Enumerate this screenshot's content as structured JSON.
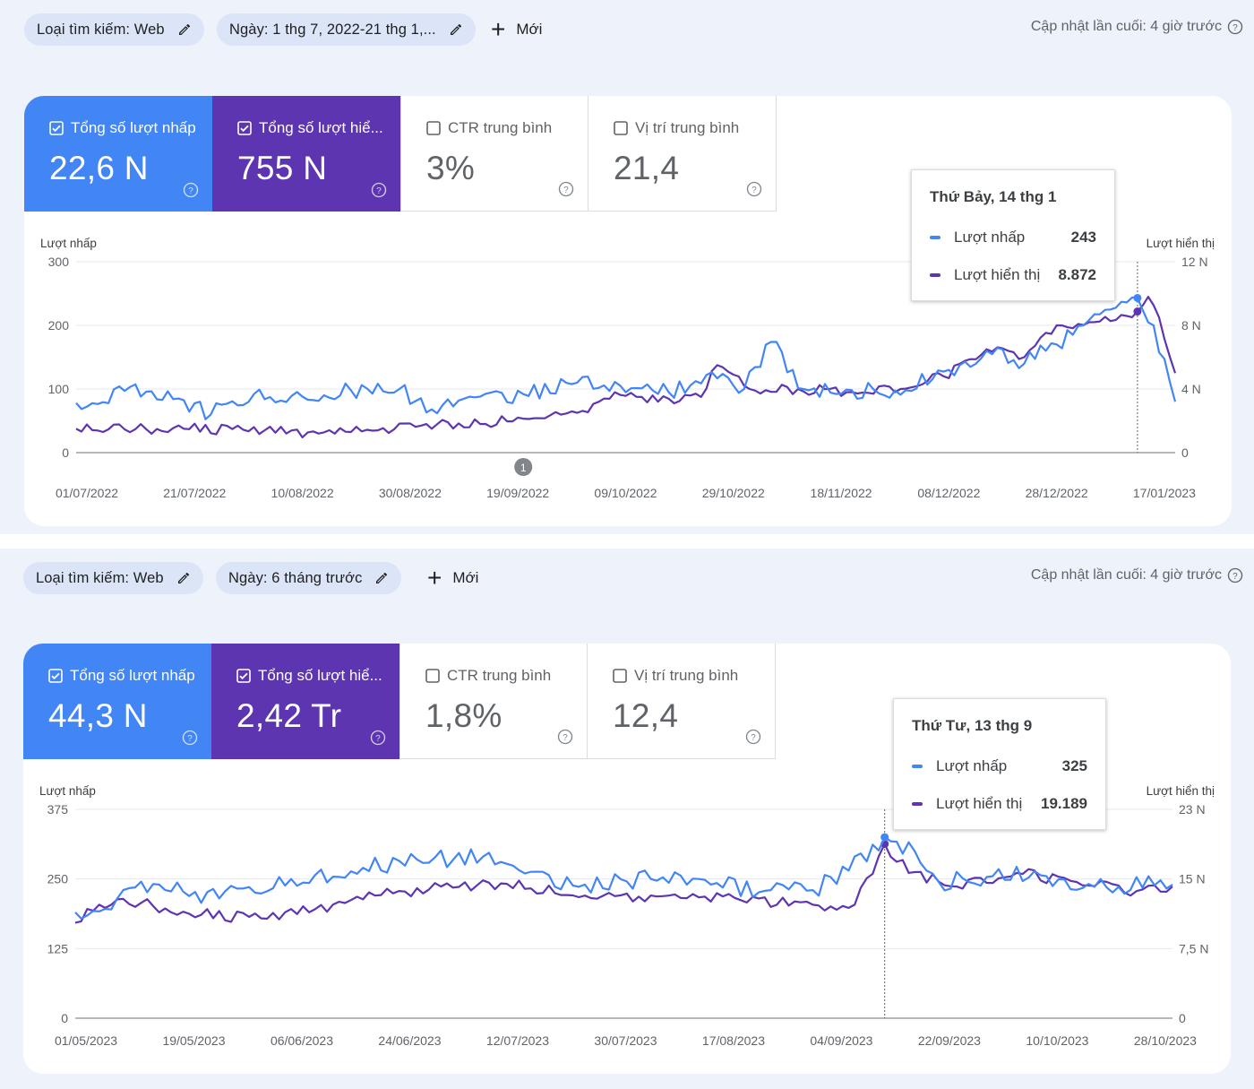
{
  "colors": {
    "clicks": "#4285f4",
    "impressions": "#5e35b1",
    "section_bg": "#eef2fb",
    "chip_bg": "#dbe5f7",
    "grid": "#e8eaed",
    "axis_text": "#5f6368"
  },
  "icons": {
    "edit": "pencil-icon",
    "add": "plus-icon",
    "help": "help-circle-icon",
    "checkbox": "checkbox-icon",
    "annotation": "annotation-marker-icon"
  },
  "panels": [
    {
      "filters": {
        "search_type": "Loại tìm kiếm: Web",
        "date": "Ngày: 1 thg 7, 2022-21 thg 1,..."
      },
      "new_label": "Mới",
      "updated": "Cập nhật lần cuối: 4 giờ trước",
      "metrics": [
        {
          "label": "Tổng số lượt nhấp",
          "value": "22,6 N",
          "checked": true
        },
        {
          "label": "Tổng số lượt hiể...",
          "value": "755 N",
          "checked": true
        },
        {
          "label": "CTR trung bình",
          "value": "3%",
          "checked": false
        },
        {
          "label": "Vị trí trung bình",
          "value": "21,4",
          "checked": false
        }
      ],
      "tooltip": {
        "date": "Thứ Bảy, 14 thg 1",
        "rows": [
          {
            "name": "Lượt nhấp",
            "value": "243"
          },
          {
            "name": "Lượt hiển thị",
            "value": "8.872"
          }
        ]
      },
      "chart_data": {
        "type": "line",
        "left_axis_label": "Lượt nhấp",
        "right_axis_label": "Lượt hiển thị",
        "left_ticks": [
          "300",
          "200",
          "100",
          "0"
        ],
        "right_ticks": [
          "12 N",
          "8 N",
          "4 N",
          "0"
        ],
        "ylim_left": [
          0,
          300
        ],
        "ylim_right": [
          0,
          12000
        ],
        "x_start": "01/07/2022",
        "x_end": "21/01/2023",
        "x_ticks": [
          "01/07/2022",
          "21/07/2022",
          "10/08/2022",
          "30/08/2022",
          "19/09/2022",
          "09/10/2022",
          "29/10/2022",
          "18/11/2022",
          "08/12/2022",
          "28/12/2022",
          "17/01/2023"
        ],
        "annotation": {
          "label": "1",
          "date": "22/09/2022"
        },
        "hover_date": "14/01/2023",
        "series": [
          {
            "name": "Lượt nhấp",
            "key": "clicks",
            "axis": "left",
            "points": [
              [
                "01/07/2022",
                78
              ],
              [
                "10/07/2022",
                97
              ],
              [
                "20/07/2022",
                85
              ],
              [
                "26/07/2022",
                60
              ],
              [
                "03/08/2022",
                92
              ],
              [
                "12/08/2022",
                88
              ],
              [
                "21/08/2022",
                98
              ],
              [
                "30/08/2022",
                100
              ],
              [
                "05/09/2022",
                68
              ],
              [
                "14/09/2022",
                88
              ],
              [
                "22/09/2022",
                92
              ],
              [
                "02/10/2022",
                110
              ],
              [
                "11/10/2022",
                95
              ],
              [
                "19/10/2022",
                95
              ],
              [
                "26/10/2022",
                122
              ],
              [
                "02/11/2022",
                100
              ],
              [
                "07/11/2022",
                174
              ],
              [
                "13/11/2022",
                100
              ],
              [
                "22/11/2022",
                98
              ],
              [
                "02/12/2022",
                98
              ],
              [
                "10/12/2022",
                130
              ],
              [
                "17/12/2022",
                160
              ],
              [
                "24/12/2022",
                140
              ],
              [
                "30/12/2022",
                170
              ],
              [
                "04/01/2023",
                200
              ],
              [
                "09/01/2023",
                225
              ],
              [
                "14/01/2023",
                243
              ],
              [
                "17/01/2023",
                200
              ],
              [
                "21/01/2023",
                80
              ]
            ]
          },
          {
            "name": "Lượt hiển thị",
            "key": "impr",
            "axis": "right",
            "points": [
              [
                "01/07/2022",
                1500
              ],
              [
                "21/07/2022",
                1500
              ],
              [
                "05/08/2022",
                1400
              ],
              [
                "15/08/2022",
                1200
              ],
              [
                "26/08/2022",
                1400
              ],
              [
                "04/09/2022",
                1800
              ],
              [
                "14/09/2022",
                1800
              ],
              [
                "21/09/2022",
                2200
              ],
              [
                "02/10/2022",
                2500
              ],
              [
                "09/10/2022",
                3800
              ],
              [
                "17/10/2022",
                3200
              ],
              [
                "25/10/2022",
                3500
              ],
              [
                "28/10/2022",
                5500
              ],
              [
                "03/11/2022",
                4000
              ],
              [
                "12/11/2022",
                4000
              ],
              [
                "21/11/2022",
                3800
              ],
              [
                "01/12/2022",
                4000
              ],
              [
                "09/12/2022",
                4800
              ],
              [
                "17/12/2022",
                6500
              ],
              [
                "24/12/2022",
                6000
              ],
              [
                "30/12/2022",
                8000
              ],
              [
                "06/01/2023",
                8200
              ],
              [
                "14/01/2023",
                8872
              ],
              [
                "16/01/2023",
                9800
              ],
              [
                "18/01/2023",
                8500
              ],
              [
                "21/01/2023",
                5000
              ]
            ]
          }
        ]
      }
    },
    {
      "filters": {
        "search_type": "Loại tìm kiếm: Web",
        "date": "Ngày: 6 tháng trước"
      },
      "new_label": "Mới",
      "updated": "Cập nhật lần cuối: 4 giờ trước",
      "metrics": [
        {
          "label": "Tổng số lượt nhấp",
          "value": "44,3 N",
          "checked": true
        },
        {
          "label": "Tổng số lượt hiể...",
          "value": "2,42 Tr",
          "checked": true
        },
        {
          "label": "CTR trung bình",
          "value": "1,8%",
          "checked": false
        },
        {
          "label": "Vị trí trung bình",
          "value": "12,4",
          "checked": false
        }
      ],
      "tooltip": {
        "date": "Thứ Tư, 13 thg 9",
        "rows": [
          {
            "name": "Lượt nhấp",
            "value": "325"
          },
          {
            "name": "Lượt hiển thị",
            "value": "19.189"
          }
        ]
      },
      "chart_data": {
        "type": "line",
        "left_axis_label": "Lượt nhấp",
        "right_axis_label": "Lượt hiển thị",
        "left_ticks": [
          "375",
          "250",
          "125",
          "0"
        ],
        "right_ticks": [
          "23 N",
          "15 N",
          "7,5 N",
          "0"
        ],
        "ylim_left": [
          0,
          375
        ],
        "ylim_right": [
          0,
          23000
        ],
        "x_start": "01/05/2023",
        "x_end": "31/10/2023",
        "x_ticks": [
          "01/05/2023",
          "19/05/2023",
          "06/06/2023",
          "24/06/2023",
          "12/07/2023",
          "30/07/2023",
          "17/08/2023",
          "04/09/2023",
          "22/09/2023",
          "10/10/2023",
          "28/10/2023"
        ],
        "hover_date": "13/09/2023",
        "series": [
          {
            "name": "Lượt nhấp",
            "key": "clicks",
            "axis": "left",
            "points": [
              [
                "01/05/2023",
                190
              ],
              [
                "08/05/2023",
                215
              ],
              [
                "15/05/2023",
                240
              ],
              [
                "25/05/2023",
                215
              ],
              [
                "06/06/2023",
                250
              ],
              [
                "18/06/2023",
                270
              ],
              [
                "27/06/2023",
                285
              ],
              [
                "08/07/2023",
                290
              ],
              [
                "15/07/2023",
                260
              ],
              [
                "25/07/2023",
                240
              ],
              [
                "05/08/2023",
                250
              ],
              [
                "15/08/2023",
                240
              ],
              [
                "25/08/2023",
                230
              ],
              [
                "01/09/2023",
                230
              ],
              [
                "07/09/2023",
                265
              ],
              [
                "13/09/2023",
                325
              ],
              [
                "18/09/2023",
                300
              ],
              [
                "22/09/2023",
                245
              ],
              [
                "01/10/2023",
                255
              ],
              [
                "10/10/2023",
                255
              ],
              [
                "20/10/2023",
                235
              ],
              [
                "31/10/2023",
                240
              ]
            ]
          },
          {
            "name": "Lượt hiển thị",
            "key": "impr",
            "axis": "right",
            "points": [
              [
                "01/05/2023",
                10500
              ],
              [
                "05/05/2023",
                12500
              ],
              [
                "12/05/2023",
                12700
              ],
              [
                "20/05/2023",
                11500
              ],
              [
                "01/06/2023",
                11000
              ],
              [
                "10/06/2023",
                12000
              ],
              [
                "20/06/2023",
                13500
              ],
              [
                "01/07/2023",
                14500
              ],
              [
                "12/07/2023",
                14800
              ],
              [
                "25/07/2023",
                13500
              ],
              [
                "08/08/2023",
                13500
              ],
              [
                "20/08/2023",
                13000
              ],
              [
                "01/09/2023",
                12500
              ],
              [
                "08/09/2023",
                12500
              ],
              [
                "13/09/2023",
                19189
              ],
              [
                "17/09/2023",
                16000
              ],
              [
                "25/09/2023",
                14500
              ],
              [
                "05/10/2023",
                16000
              ],
              [
                "15/10/2023",
                15000
              ],
              [
                "25/10/2023",
                14000
              ],
              [
                "31/10/2023",
                14500
              ]
            ]
          }
        ]
      }
    }
  ]
}
